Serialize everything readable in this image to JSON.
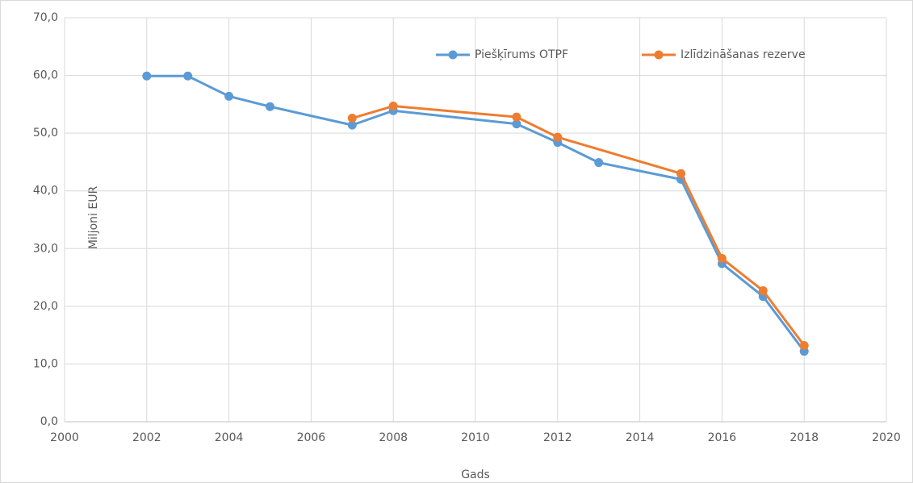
{
  "chart_data": {
    "type": "line",
    "xlabel": "Gads",
    "ylabel": "Miljoni EUR",
    "xlim": [
      2000,
      2020
    ],
    "xticks": [
      2000,
      2002,
      2004,
      2006,
      2008,
      2010,
      2012,
      2014,
      2016,
      2018,
      2020
    ],
    "ylim": [
      0,
      70
    ],
    "yticks": [
      {
        "value": 0,
        "label": "0,0"
      },
      {
        "value": 10,
        "label": "10,0"
      },
      {
        "value": 20,
        "label": "20,0"
      },
      {
        "value": 30,
        "label": "30,0"
      },
      {
        "value": 40,
        "label": "40,0"
      },
      {
        "value": 50,
        "label": "50,0"
      },
      {
        "value": 60,
        "label": "60,0"
      },
      {
        "value": 70,
        "label": "70,0"
      }
    ],
    "grid": true,
    "legend": "top",
    "series": [
      {
        "name": "Piešķīrums OTPF",
        "color": "#5b9bd5",
        "x": [
          2002,
          2003,
          2004,
          2005,
          2007,
          2008,
          2011,
          2012,
          2013,
          2015,
          2016,
          2017,
          2018
        ],
        "values": [
          59.9,
          59.9,
          56.4,
          54.6,
          51.4,
          53.9,
          51.6,
          48.4,
          44.9,
          42.0,
          27.4,
          21.7,
          12.2
        ]
      },
      {
        "name": "Izlīdzināšanas rezerve",
        "color": "#ed7d31",
        "x": [
          2007,
          2008,
          2011,
          2012,
          2015,
          2016,
          2017,
          2018
        ],
        "values": [
          52.6,
          54.7,
          52.8,
          49.3,
          43.0,
          28.3,
          22.7,
          13.2
        ]
      }
    ]
  }
}
